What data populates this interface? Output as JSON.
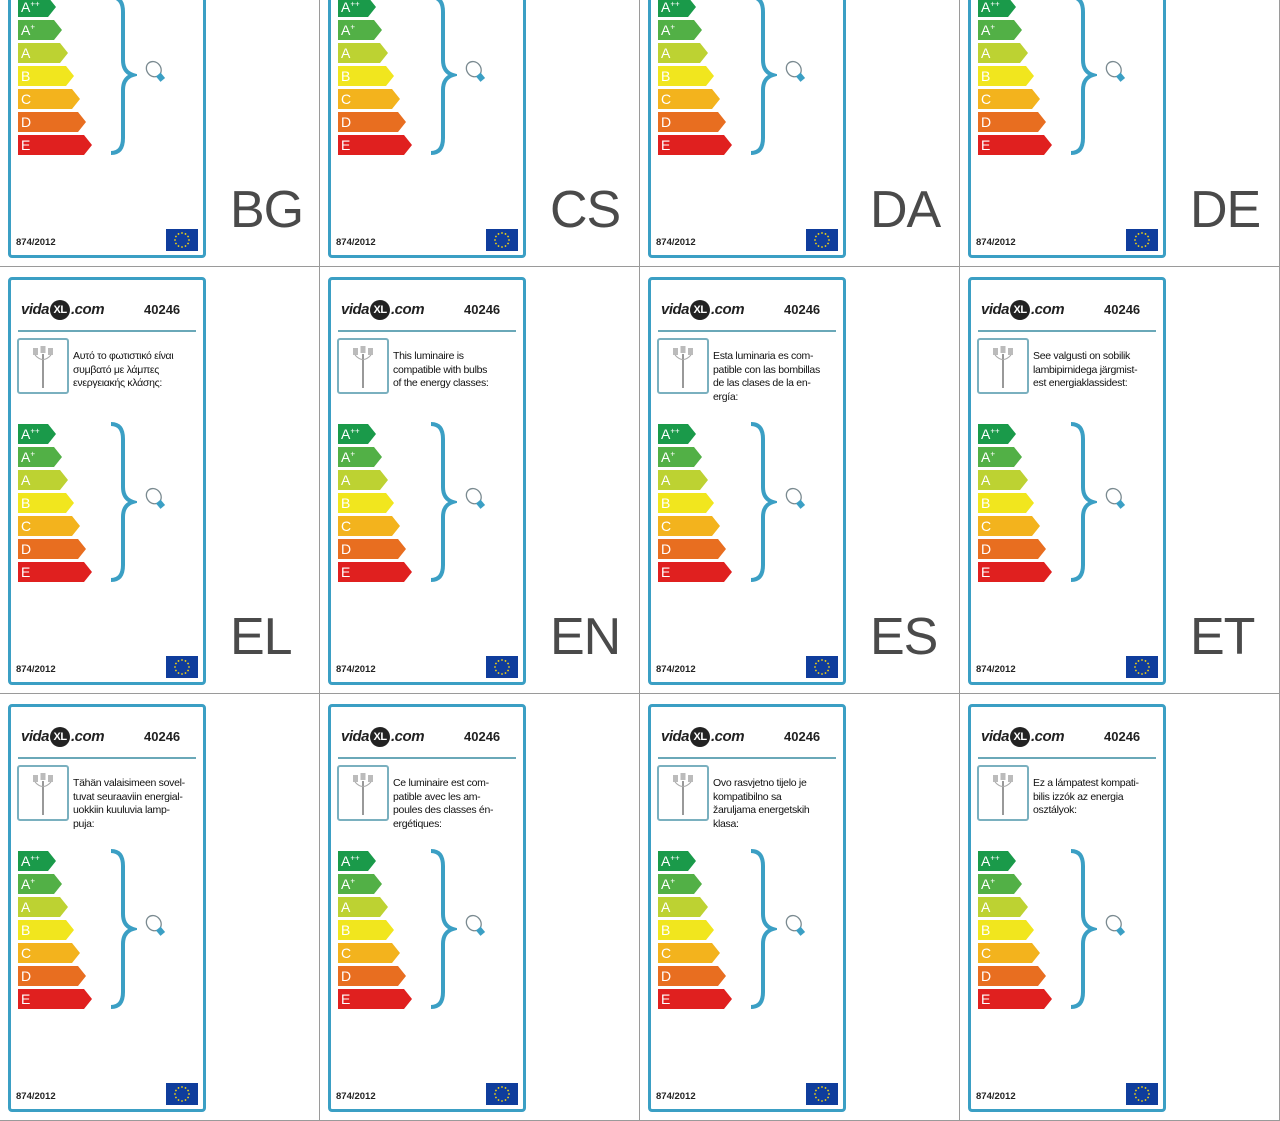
{
  "brand": {
    "logo_prefix": "vida",
    "logo_mark": "XL",
    "logo_suffix": ".com"
  },
  "product_code": "40246",
  "regulation": "874/2012",
  "energy_classes": [
    {
      "base": "A",
      "sup": "++",
      "color": "#1a9a4a"
    },
    {
      "base": "A",
      "sup": "+",
      "color": "#52b046"
    },
    {
      "base": "A",
      "sup": "",
      "color": "#bdd232"
    },
    {
      "base": "B",
      "sup": "",
      "color": "#f1e61e"
    },
    {
      "base": "C",
      "sup": "",
      "color": "#f3b31d"
    },
    {
      "base": "D",
      "sup": "",
      "color": "#e86e20"
    },
    {
      "base": "E",
      "sup": "",
      "color": "#e0201f"
    }
  ],
  "accent_color": "#3b9fc4",
  "labels": [
    {
      "lang": "BG"
    },
    {
      "lang": "CS"
    },
    {
      "lang": "DA"
    },
    {
      "lang": "DE"
    },
    {
      "lang": "EL",
      "text": [
        "Αυτό το φωτιστικό είναι",
        "συμβατό με λάμπες",
        "ενεργειακής κλάσης:"
      ]
    },
    {
      "lang": "EN",
      "text": [
        "This luminaire is",
        "compatible with bulbs",
        "of the energy classes:"
      ]
    },
    {
      "lang": "ES",
      "text": [
        "Esta luminaria es com-",
        "patible con las bombillas",
        "de las clases de la en-",
        "ergía:"
      ]
    },
    {
      "lang": "ET",
      "text": [
        "See valgusti on sobilik",
        "lambipirnidega järgmist-",
        "est energiaklassidest:"
      ]
    },
    {
      "text": [
        "Tähän valaisimeen sovel-",
        "tuvat seuraaviin energial-",
        "uokkiin kuuluvia lamp-",
        "puja:"
      ]
    },
    {
      "text": [
        "Ce luminaire est com-",
        "patible avec les am-",
        "poules des classes én-",
        "ergétiques:"
      ]
    },
    {
      "text": [
        "Ovo rasvjetno tijelo je",
        "kompatibilno sa",
        "žaruljama energetskih",
        "klasa:"
      ]
    },
    {
      "text": [
        "Ez a lámpatest kompati-",
        "bilis izzók az energia",
        "osztályok:"
      ]
    }
  ]
}
